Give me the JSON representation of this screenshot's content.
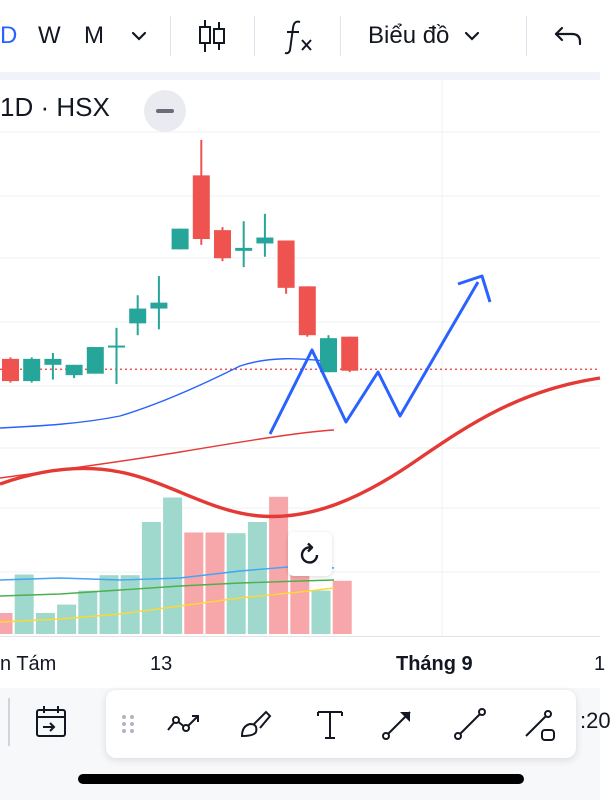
{
  "toolbar": {
    "interval_d": "D",
    "interval_w": "W",
    "interval_m": "M",
    "chart_type_label": "Biểu đồ",
    "icons": [
      "chevron-down-icon",
      "candlestick-icon",
      "function-icon",
      "chevron-down-icon",
      "undo-icon"
    ],
    "accent_color": "#2962ff"
  },
  "legend": {
    "symbol": "1D · HSX"
  },
  "time_axis": {
    "labels": [
      "n Tám",
      "13",
      "Tháng 9",
      "1"
    ]
  },
  "bottom": {
    "time_partial": ":20"
  },
  "drawing_tools": [
    "drag-handle-icon",
    "trend-line-icon",
    "brush-icon",
    "text-icon",
    "arrow-icon",
    "line-icon",
    "ray-icon"
  ],
  "chart_data": {
    "type": "candlestick",
    "colors": {
      "up": "#26a69a",
      "down": "#ef5350",
      "ma_short": "#2962ff",
      "ma_long": "#e53935",
      "vol_ma1": "#42a5f5",
      "vol_ma2": "#4caf50",
      "vol_ma3": "#fdd835",
      "drawing": "#2962ff"
    },
    "candles": [
      {
        "o": 0.88,
        "h": 0.9,
        "l": 0.56,
        "c": 0.58
      },
      {
        "o": 0.58,
        "h": 0.9,
        "l": 0.56,
        "c": 0.88
      },
      {
        "o": 0.8,
        "h": 0.96,
        "l": 0.6,
        "c": 0.88
      },
      {
        "o": 0.66,
        "h": 0.8,
        "l": 0.62,
        "c": 0.8
      },
      {
        "o": 0.68,
        "h": 1.04,
        "l": 0.7,
        "c": 1.04
      },
      {
        "o": 1.04,
        "h": 1.3,
        "l": 0.54,
        "c": 1.06
      },
      {
        "o": 1.36,
        "h": 1.74,
        "l": 1.2,
        "c": 1.56
      },
      {
        "o": 1.56,
        "h": 2.0,
        "l": 1.28,
        "c": 1.64
      },
      {
        "o": 2.36,
        "h": 2.64,
        "l": 2.36,
        "c": 2.64
      },
      {
        "o": 3.36,
        "h": 3.84,
        "l": 2.42,
        "c": 2.5
      },
      {
        "o": 2.62,
        "h": 2.66,
        "l": 2.2,
        "c": 2.24
      },
      {
        "o": 2.34,
        "h": 2.74,
        "l": 2.12,
        "c": 2.38
      },
      {
        "o": 2.44,
        "h": 2.84,
        "l": 2.26,
        "c": 2.52
      },
      {
        "o": 2.48,
        "h": 2.48,
        "l": 1.76,
        "c": 1.84
      },
      {
        "o": 1.86,
        "h": 1.86,
        "l": 1.18,
        "c": 1.2
      },
      {
        "o": 0.7,
        "h": 1.2,
        "l": 0.7,
        "c": 1.16
      },
      {
        "o": 1.18,
        "h": 1.18,
        "l": 0.7,
        "c": 0.72
      }
    ],
    "volumes": [
      0.3,
      0.85,
      0.3,
      0.42,
      0.62,
      0.84,
      0.84,
      1.6,
      1.95,
      1.45,
      1.45,
      1.44,
      1.6,
      1.96,
      1.4,
      0.62,
      0.76
    ],
    "current_price_line": 0.74
  }
}
